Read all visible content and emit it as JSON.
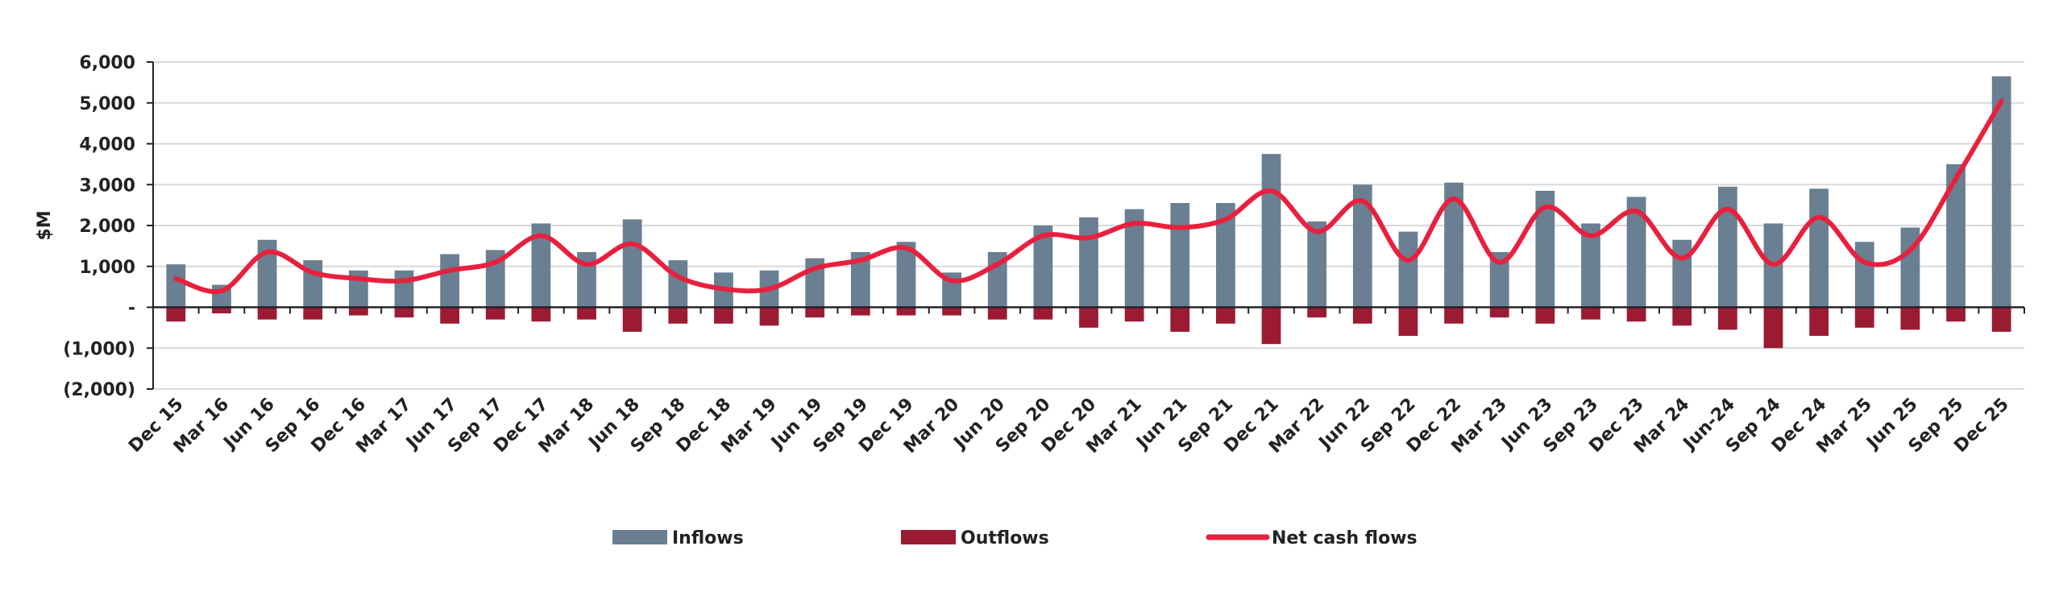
{
  "chart_data": {
    "type": "bar",
    "title": "",
    "xlabel": "",
    "ylabel": "$M",
    "ylim": [
      -2000,
      6000
    ],
    "yticks": [
      6000,
      5000,
      4000,
      3000,
      2000,
      1000,
      0,
      -1000,
      -2000
    ],
    "ytick_labels": [
      "6,000",
      "5,000",
      "4,000",
      "3,000",
      "2,000",
      "1,000",
      "-",
      "(1,000)",
      "(2,000)"
    ],
    "grid": true,
    "legend_position": "bottom",
    "categories": [
      "Dec 15",
      "Mar 16",
      "Jun 16",
      "Sep 16",
      "Dec 16",
      "Mar 17",
      "Jun 17",
      "Sep 17",
      "Dec 17",
      "Mar 18",
      "Jun 18",
      "Sep 18",
      "Dec 18",
      "Mar 19",
      "Jun 19",
      "Sep 19",
      "Dec 19",
      "Mar 20",
      "Jun 20",
      "Sep 20",
      "Dec 20",
      "Mar 21",
      "Jun 21",
      "Sep 21",
      "Dec 21",
      "Mar 22",
      "Jun 22",
      "Sep 22",
      "Dec 22",
      "Mar 23",
      "Jun 23",
      "Sep 23",
      "Dec 23",
      "Mar 24",
      "Jun-24",
      "Sep 24",
      "Dec 24",
      "Mar 25",
      "Jun 25",
      "Sep 25",
      "Dec 25"
    ],
    "series": [
      {
        "name": "Inflows",
        "kind": "bar",
        "color": "#6a7f91",
        "values": [
          1050,
          550,
          1650,
          1150,
          900,
          900,
          1300,
          1400,
          2050,
          1350,
          2150,
          1150,
          850,
          900,
          1200,
          1350,
          1600,
          850,
          1350,
          2000,
          2200,
          2400,
          2550,
          2550,
          3750,
          2100,
          3000,
          1850,
          3050,
          1350,
          2850,
          2050,
          2700,
          1650,
          2950,
          2050,
          2900,
          1600,
          1950,
          3500,
          5650
        ]
      },
      {
        "name": "Outflows",
        "kind": "bar",
        "color": "#9b1b33",
        "values": [
          -350,
          -150,
          -300,
          -300,
          -200,
          -250,
          -400,
          -300,
          -350,
          -300,
          -600,
          -400,
          -400,
          -450,
          -250,
          -200,
          -200,
          -200,
          -300,
          -300,
          -500,
          -350,
          -600,
          -400,
          -900,
          -250,
          -400,
          -700,
          -400,
          -250,
          -400,
          -300,
          -350,
          -450,
          -550,
          -1000,
          -700,
          -500,
          -550,
          -350,
          -600
        ]
      },
      {
        "name": "Net cash flows",
        "kind": "line",
        "color": "#e8203e",
        "values": [
          700,
          400,
          1350,
          850,
          700,
          650,
          900,
          1100,
          1750,
          1050,
          1550,
          750,
          450,
          450,
          950,
          1150,
          1450,
          650,
          1050,
          1750,
          1700,
          2050,
          1950,
          2150,
          2850,
          1850,
          2600,
          1150,
          2650,
          1100,
          2450,
          1750,
          2350,
          1200,
          2400,
          1050,
          2200,
          1100,
          1400,
          3150,
          5050
        ]
      }
    ]
  },
  "colors": {
    "inflows": "#6a7f91",
    "outflows": "#9b1b33",
    "net": "#e8203e",
    "grid": "#d9d9d9",
    "axis": "#222222"
  }
}
